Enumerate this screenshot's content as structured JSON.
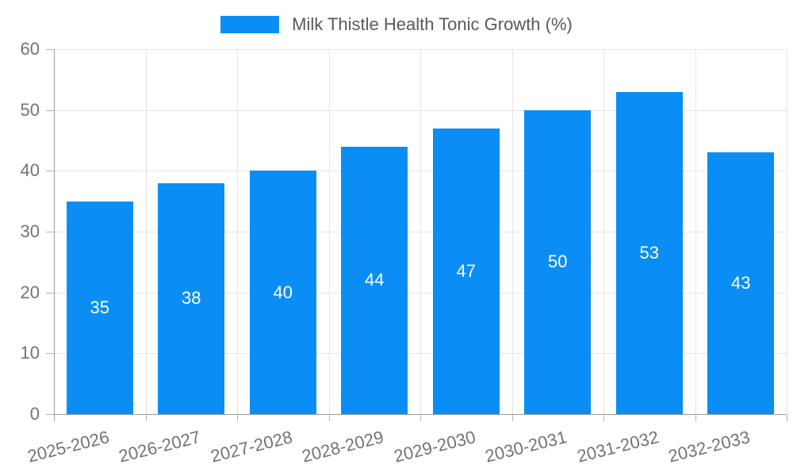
{
  "chart_data": {
    "type": "bar",
    "title": "Milk Thistle Health Tonic Growth (%)",
    "categories": [
      "2025-2026",
      "2026-2027",
      "2027-2028",
      "2028-2029",
      "2029-2030",
      "2030-2031",
      "2031-2032",
      "2032-2033"
    ],
    "series": [
      {
        "name": "Milk Thistle Health Tonic Growth (%)",
        "values": [
          35,
          38,
          40,
          44,
          47,
          50,
          53,
          43
        ]
      }
    ],
    "xlabel": "",
    "ylabel": "",
    "ylim": [
      0,
      60
    ],
    "yticks": [
      0,
      10,
      20,
      30,
      40,
      50,
      60
    ],
    "grid": true,
    "legend_position": "top",
    "value_labels": "inside-center"
  },
  "legend": {
    "label": "Milk Thistle Health Tonic Growth (%)"
  },
  "colors": {
    "bar": "#0a8ef5",
    "grid": "#e6e6e6",
    "axis": "#9e9e9e",
    "tick_mark": "#b3b3b3",
    "tick_text": "#737373",
    "legend_text": "#595959",
    "value_text": "#ffffff",
    "background": "#ffffff"
  }
}
